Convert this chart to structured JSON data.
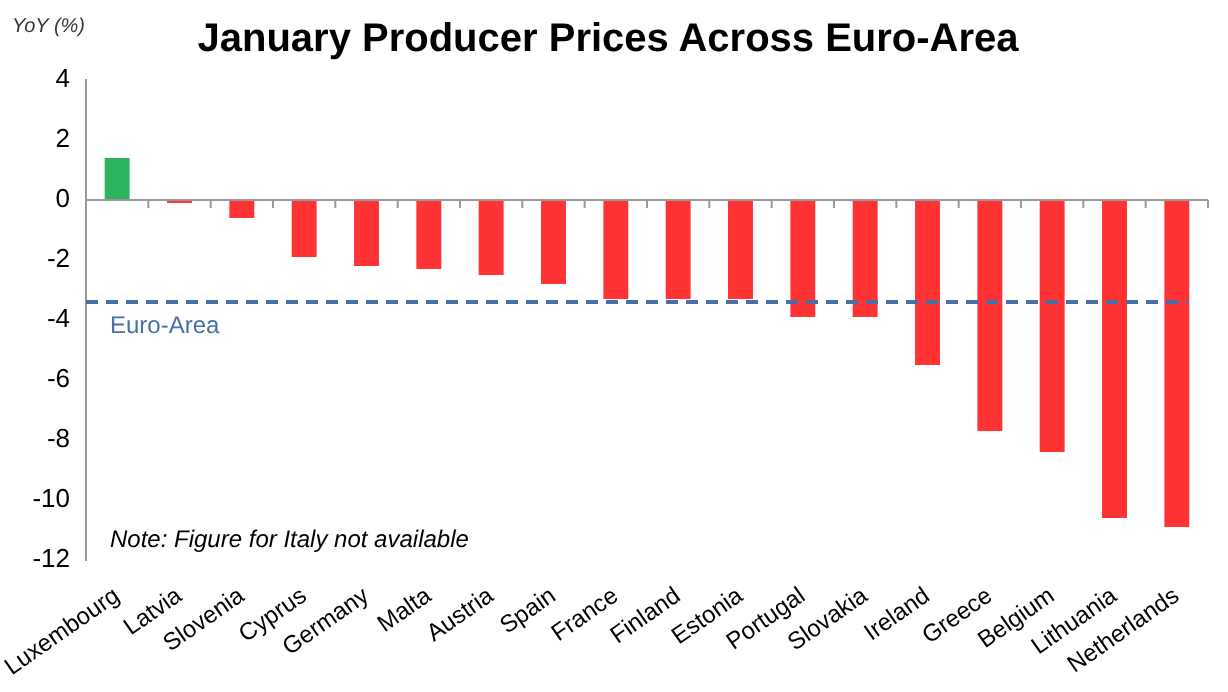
{
  "chart_data": {
    "type": "bar",
    "title": "January Producer Prices Across Euro-Area",
    "ylabel": "YoY (%)",
    "categories": [
      "Luxembourg",
      "Latvia",
      "Slovenia",
      "Cyprus",
      "Germany",
      "Malta",
      "Austria",
      "Spain",
      "France",
      "Finland",
      "Estonia",
      "Portugal",
      "Slovakia",
      "Ireland",
      "Greece",
      "Belgium",
      "Lithuania",
      "Netherlands"
    ],
    "values": [
      1.4,
      -0.1,
      -0.6,
      -1.9,
      -2.2,
      -2.3,
      -2.5,
      -2.8,
      -3.3,
      -3.3,
      -3.3,
      -3.9,
      -3.9,
      -5.5,
      -7.7,
      -8.4,
      -10.6,
      -10.9
    ],
    "colors": [
      "#2db55d",
      "#ff3333",
      "#ff3333",
      "#ff3333",
      "#ff3333",
      "#ff3333",
      "#ff3333",
      "#ff3333",
      "#ff3333",
      "#ff3333",
      "#ff3333",
      "#ff3333",
      "#ff3333",
      "#ff3333",
      "#ff3333",
      "#ff3333",
      "#ff3333",
      "#ff3333"
    ],
    "ylim": [
      -12,
      4
    ],
    "yticks": [
      -12,
      -10,
      -8,
      -6,
      -4,
      -2,
      0,
      2,
      4
    ],
    "ref_lines": [
      {
        "axis": "y",
        "value": -3.4,
        "label": "Euro-Area",
        "color": "#4a6fa5",
        "line_style": "dashed"
      }
    ],
    "annotations": [
      "Note: Figure for Italy not available"
    ]
  }
}
